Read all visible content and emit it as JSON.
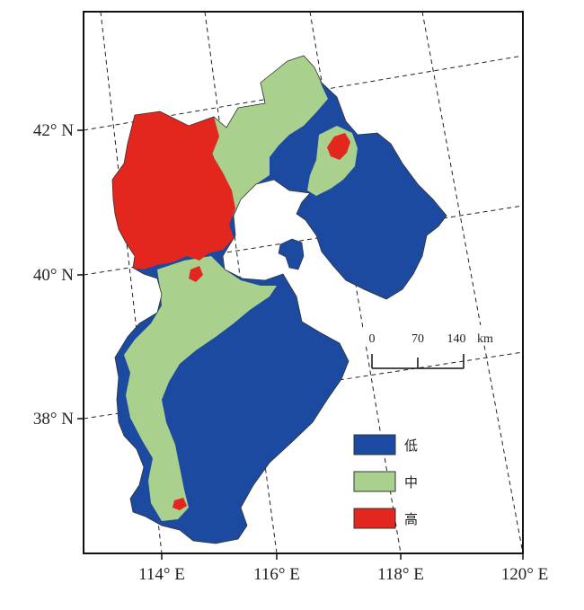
{
  "map": {
    "latitude_labels": [
      "42° N",
      "40° N",
      "38° N"
    ],
    "longitude_labels": [
      "114° E",
      "116° E",
      "118° E",
      "120° E"
    ],
    "colors": {
      "low": "#1c4aa0",
      "medium": "#a9d08c",
      "high": "#e3261e",
      "frame": "#111111"
    }
  },
  "scale_bar": {
    "ticks": [
      "0",
      "70",
      "140"
    ],
    "unit": "km"
  },
  "legend": {
    "items": [
      {
        "label": "低",
        "color": "#1c4aa0"
      },
      {
        "label": "中",
        "color": "#a9d08c"
      },
      {
        "label": "高",
        "color": "#e3261e"
      }
    ]
  }
}
